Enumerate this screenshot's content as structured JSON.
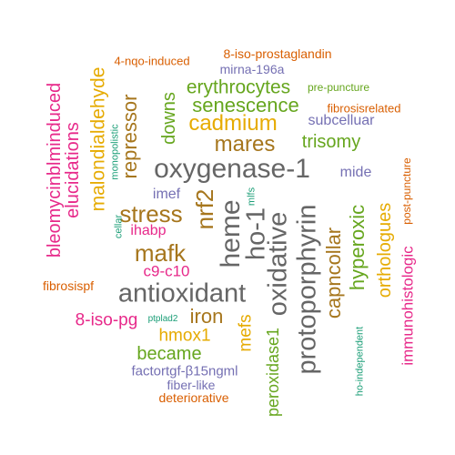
{
  "palette": {
    "green": "#66a61e",
    "magenta": "#e7298a",
    "purple": "#7570b3",
    "orange": "#d95f02",
    "teal": "#1b9e77",
    "gold": "#e6ab02",
    "brown": "#a6761d",
    "gray": "#666666"
  },
  "words": [
    {
      "text": "oxygenase-1",
      "color": "#666666"
    },
    {
      "text": "antioxidant",
      "color": "#666666"
    },
    {
      "text": "oxidative",
      "color": "#666666"
    },
    {
      "text": "protoporphyrin",
      "color": "#666666"
    },
    {
      "text": "heme",
      "color": "#666666"
    },
    {
      "text": "ho-1",
      "color": "#666666"
    },
    {
      "text": "nrf2",
      "color": "#a6761d"
    },
    {
      "text": "mafk",
      "color": "#a6761d"
    },
    {
      "text": "stress",
      "color": "#a6761d"
    },
    {
      "text": "mares",
      "color": "#a6761d"
    },
    {
      "text": "cadmium",
      "color": "#e6ab02"
    },
    {
      "text": "iron",
      "color": "#a6761d"
    },
    {
      "text": "capncollar",
      "color": "#a6761d"
    },
    {
      "text": "hyperoxic",
      "color": "#66a61e"
    },
    {
      "text": "senescence",
      "color": "#66a61e"
    },
    {
      "text": "erythrocytes",
      "color": "#66a61e"
    },
    {
      "text": "downs",
      "color": "#66a61e"
    },
    {
      "text": "repressor",
      "color": "#a6761d"
    },
    {
      "text": "malondialdehyde",
      "color": "#e6ab02"
    },
    {
      "text": "elucidations",
      "color": "#e7298a"
    },
    {
      "text": "bleomycinblminduced",
      "color": "#e7298a"
    },
    {
      "text": "orthologues",
      "color": "#e6ab02"
    },
    {
      "text": "immunohistologic",
      "color": "#e7298a"
    },
    {
      "text": "trisomy",
      "color": "#66a61e"
    },
    {
      "text": "hmox1",
      "color": "#e6ab02"
    },
    {
      "text": "mefs",
      "color": "#e6ab02"
    },
    {
      "text": "became",
      "color": "#66a61e"
    },
    {
      "text": "8-iso-pg",
      "color": "#e7298a"
    },
    {
      "text": "peroxidase1",
      "color": "#66a61e"
    },
    {
      "text": "c9-c10",
      "color": "#e7298a"
    },
    {
      "text": "ihabp",
      "color": "#e7298a"
    },
    {
      "text": "imef",
      "color": "#7570b3"
    },
    {
      "text": "mide",
      "color": "#7570b3"
    },
    {
      "text": "subcelluar",
      "color": "#7570b3"
    },
    {
      "text": "factortgf-β15ngml",
      "color": "#7570b3"
    },
    {
      "text": "fiber-like",
      "color": "#7570b3"
    },
    {
      "text": "deteriorative",
      "color": "#d95f02"
    },
    {
      "text": "fibrosispf",
      "color": "#d95f02"
    },
    {
      "text": "fibrosisrelated",
      "color": "#d95f02"
    },
    {
      "text": "4-nqo-induced",
      "color": "#d95f02"
    },
    {
      "text": "8-iso-prostaglandin",
      "color": "#d95f02"
    },
    {
      "text": "mirna-196a",
      "color": "#7570b3"
    },
    {
      "text": "pre-puncture",
      "color": "#66a61e"
    },
    {
      "text": "post-puncture",
      "color": "#d95f02"
    },
    {
      "text": "monopolistic",
      "color": "#1b9e77"
    },
    {
      "text": "cellar",
      "color": "#1b9e77"
    },
    {
      "text": "mlfs",
      "color": "#1b9e77"
    },
    {
      "text": "ptplad2",
      "color": "#1b9e77"
    },
    {
      "text": "ho-independent",
      "color": "#1b9e77"
    }
  ]
}
